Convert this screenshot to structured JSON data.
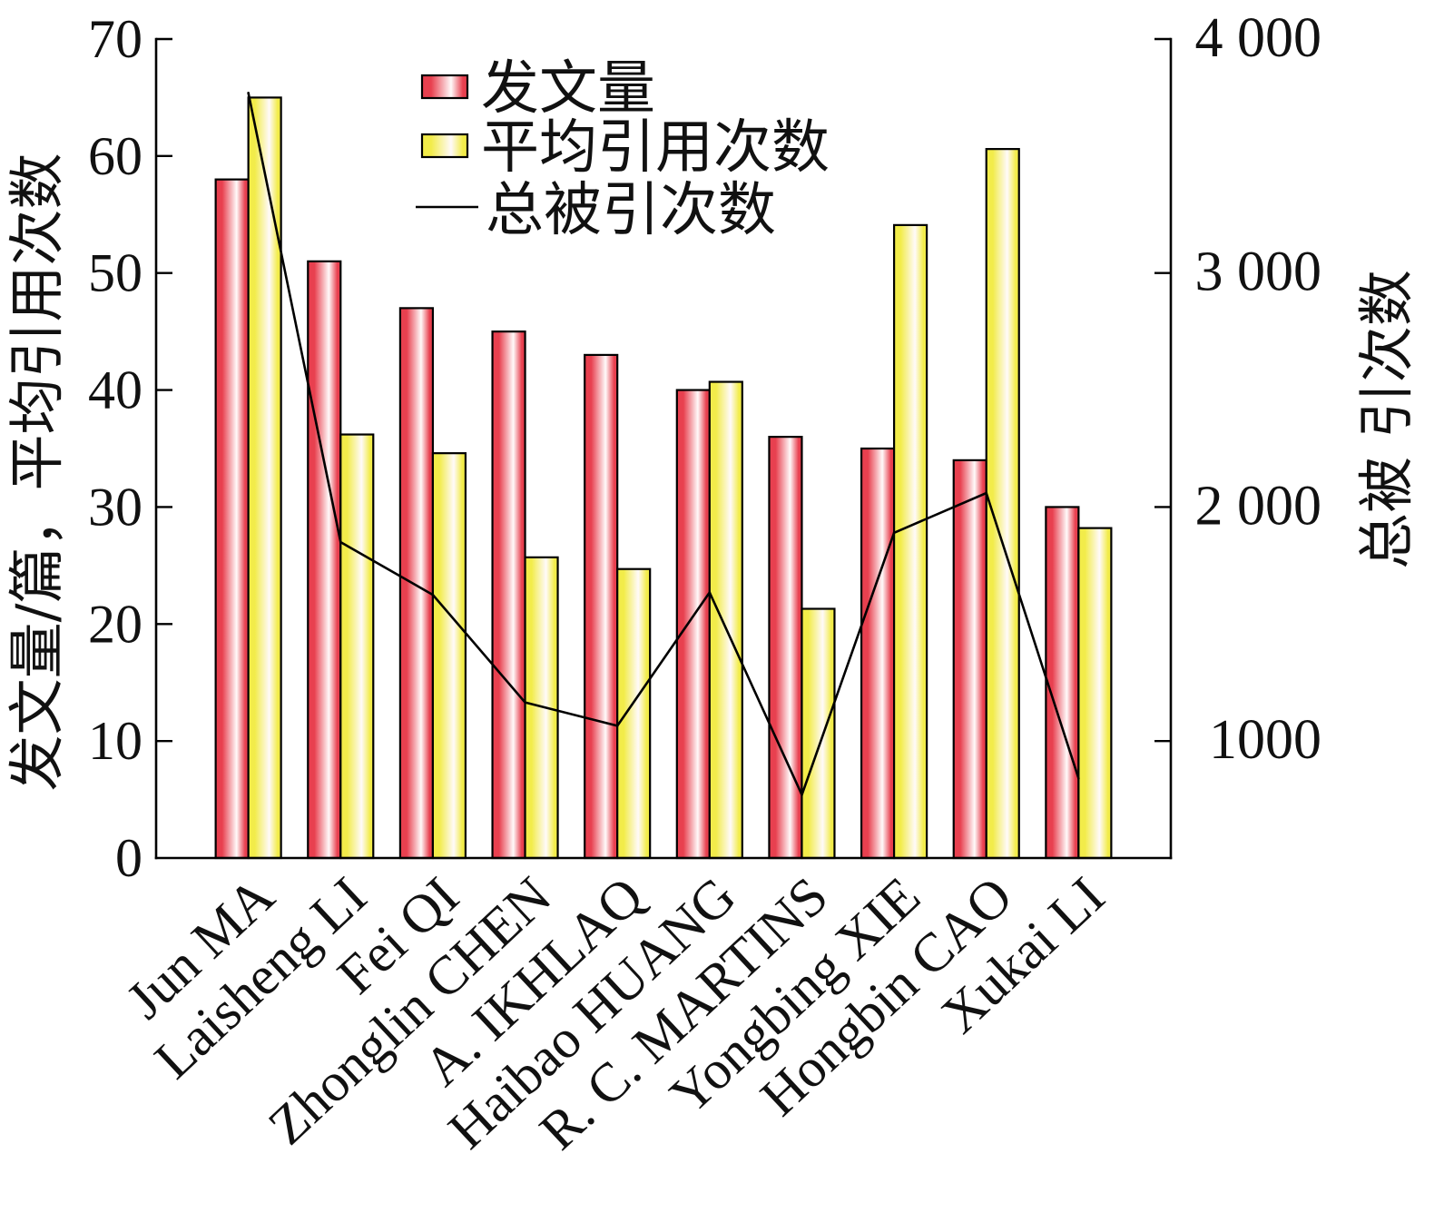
{
  "chart_data": {
    "type": "bar",
    "categories": [
      "Jun MA",
      "Laisheng LI",
      "Fei QI",
      "Zhonglin CHEN",
      "A. IKHLAQ",
      "Haibao HUANG",
      "R. C. MARTINS",
      "Yongbing XIE",
      "Hongbin CAO",
      "Xukai LI"
    ],
    "series": [
      {
        "name": "发文量",
        "type": "bar",
        "color": "#e8404f",
        "values": [
          58,
          51,
          47,
          45,
          43,
          40,
          36,
          35,
          34,
          30
        ]
      },
      {
        "name": "平均引用次数",
        "type": "bar",
        "color": "#f2ec4a",
        "values": [
          65,
          36.2,
          34.6,
          25.7,
          24.7,
          40.7,
          21.3,
          54.1,
          60.6,
          28.2
        ]
      },
      {
        "name": "总被引次数",
        "type": "line",
        "y2": true,
        "color": "#000000",
        "values": [
          3770,
          1850,
          1625,
          1165,
          1065,
          1635,
          770,
          1890,
          2060,
          840
        ]
      }
    ],
    "ylabel": "发文量/篇，平均引用次数",
    "y2label": "总被 引次数",
    "ylim": [
      0,
      70
    ],
    "yticks": [
      0,
      10,
      20,
      30,
      40,
      50,
      60,
      70
    ],
    "y2lim": [
      500,
      4000
    ],
    "y2ticks": [
      {
        "value": 1000,
        "label": "1000"
      },
      {
        "value": 2000,
        "label": "2 000"
      },
      {
        "value": 3000,
        "label": "3 000"
      },
      {
        "value": 4000,
        "label": "4 000"
      }
    ],
    "grid": false,
    "legend_position": "top-center"
  }
}
